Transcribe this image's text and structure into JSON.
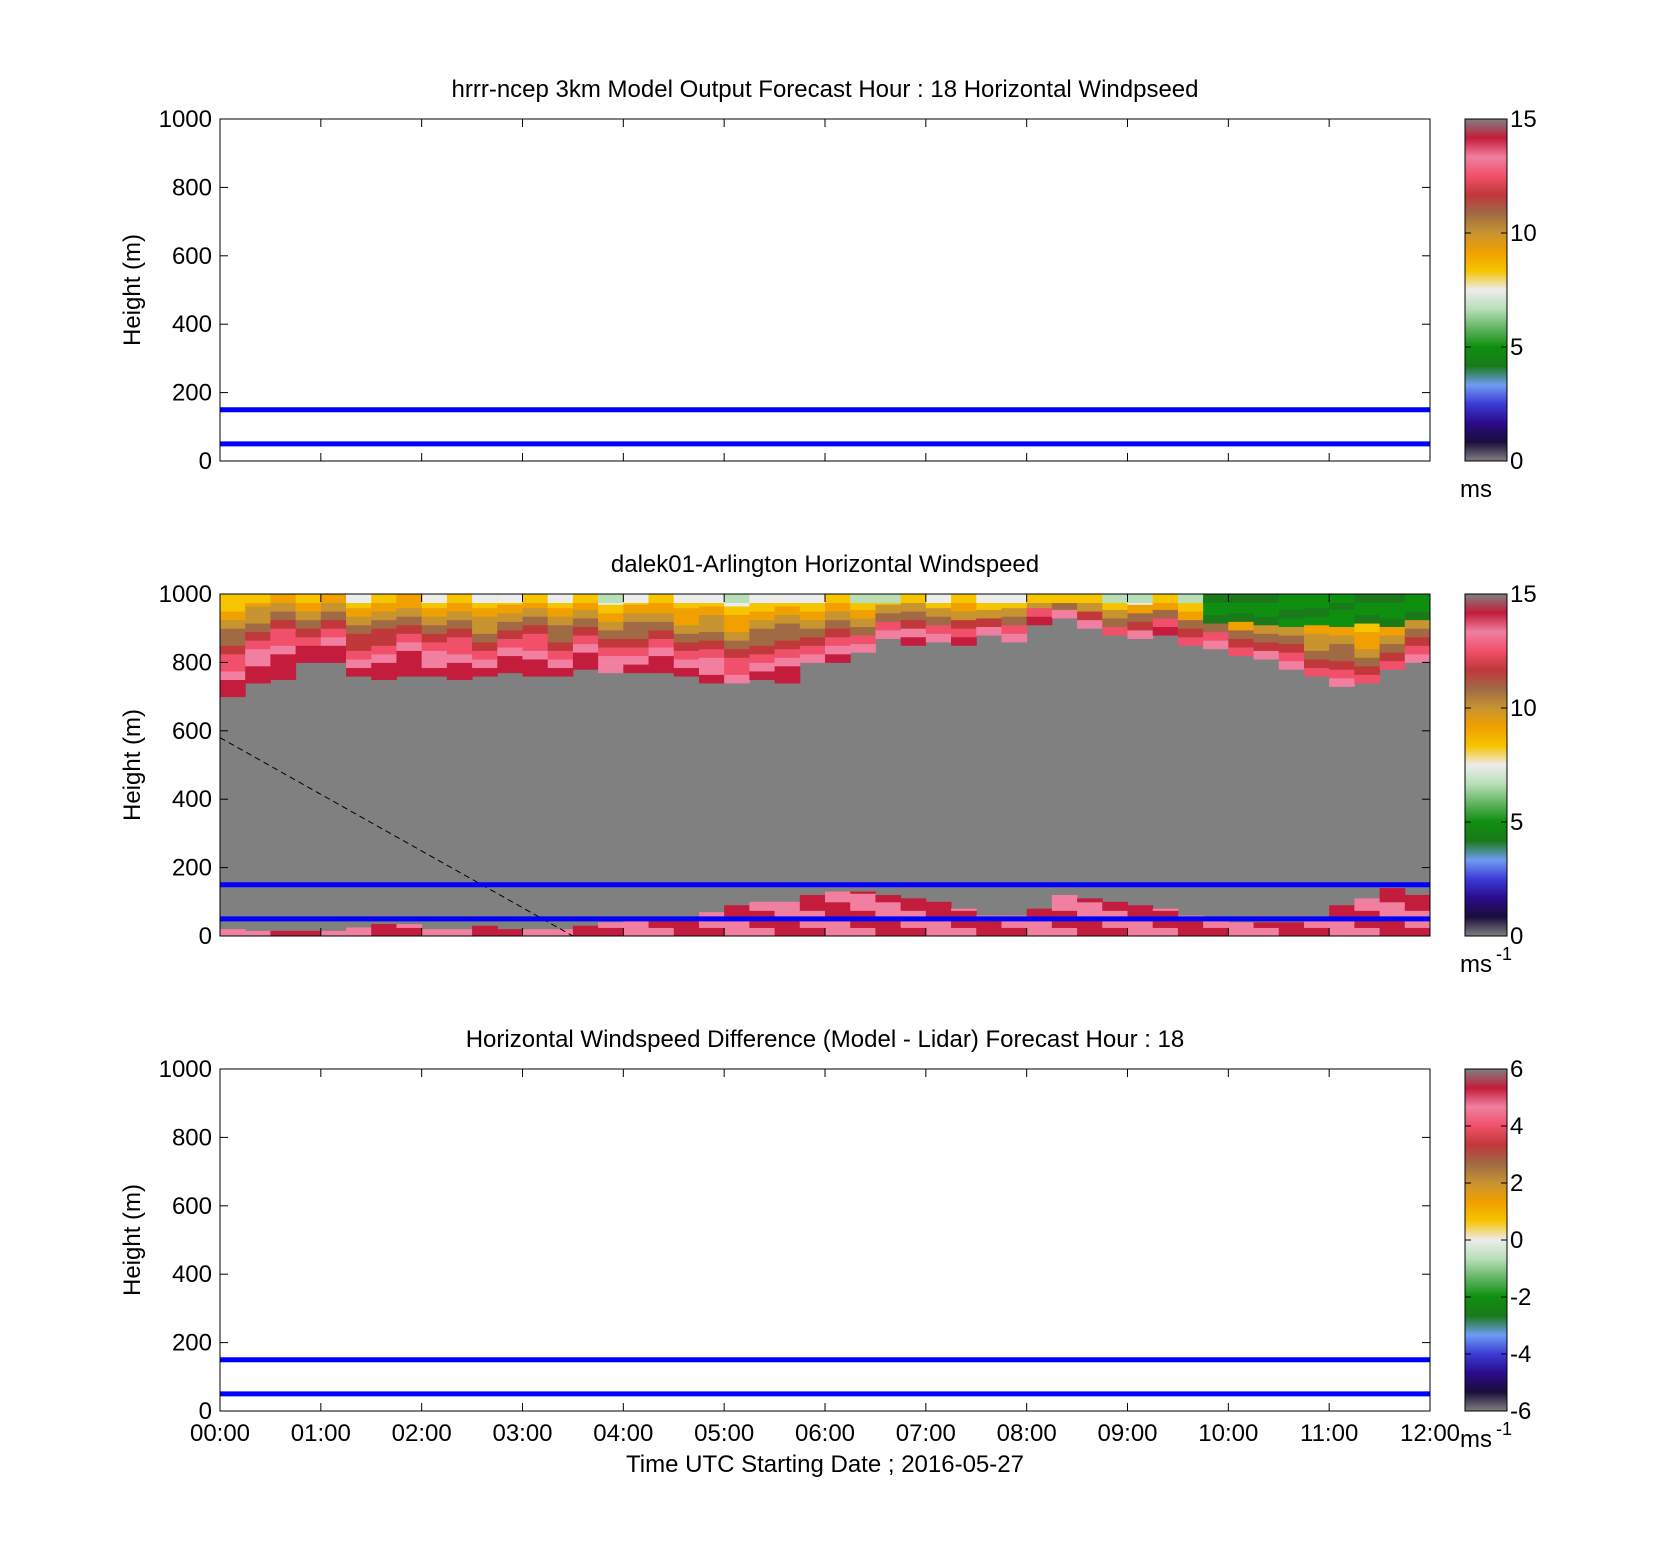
{
  "figure": {
    "xlabel": "Time UTC  Starting Date ; 2016-05-27",
    "x_ticks": [
      "00:00",
      "01:00",
      "02:00",
      "03:00",
      "04:00",
      "05:00",
      "06:00",
      "07:00",
      "08:00",
      "09:00",
      "10:00",
      "11:00",
      "12:00"
    ]
  },
  "chart_data": [
    {
      "type": "heatmap",
      "title": "hrrr-ncep 3km Model Output   Forecast Hour : 18 Horizontal Windpseed",
      "ylabel": "Height (m)",
      "xlim": [
        "00:00",
        "12:00"
      ],
      "ylim": [
        0,
        1000
      ],
      "y_ticks": [
        "0",
        "200",
        "400",
        "600",
        "800",
        "1000"
      ],
      "reference_lines_m": [
        50,
        150
      ],
      "colorbar": {
        "range": [
          0,
          15
        ],
        "ticks": [
          "0",
          "5",
          "10",
          "15"
        ],
        "unit": "ms",
        "unit_sup": ""
      },
      "field": "empty"
    },
    {
      "type": "heatmap",
      "title": "dalek01-Arlington  Horizontal Windspeed",
      "ylabel": "Height (m)",
      "xlim": [
        "00:00",
        "12:00"
      ],
      "ylim": [
        0,
        1000
      ],
      "y_ticks": [
        "0",
        "200",
        "400",
        "600",
        "800",
        "1000"
      ],
      "reference_lines_m": [
        50,
        150
      ],
      "colorbar": {
        "range": [
          0,
          15
        ],
        "ticks": [
          "0",
          "5",
          "10",
          "15"
        ],
        "unit": "ms",
        "unit_sup": "-1"
      },
      "time_steps_hours": 0.25,
      "lower_data_edge_m": [
        700,
        740,
        750,
        800,
        800,
        760,
        750,
        760,
        760,
        750,
        760,
        770,
        760,
        760,
        780,
        770,
        770,
        770,
        760,
        740,
        740,
        750,
        740,
        800,
        800,
        830,
        870,
        850,
        860,
        850,
        880,
        860,
        910,
        930,
        900,
        880,
        870,
        880,
        850,
        840,
        820,
        810,
        780,
        760,
        730,
        740,
        780,
        800
      ],
      "lowest_layer_top_m": [
        20,
        15,
        15,
        15,
        15,
        25,
        35,
        35,
        20,
        20,
        30,
        20,
        20,
        20,
        30,
        40,
        50,
        50,
        55,
        70,
        90,
        100,
        100,
        120,
        130,
        130,
        120,
        110,
        100,
        80,
        60,
        60,
        80,
        120,
        110,
        100,
        90,
        80,
        60,
        50,
        40,
        40,
        40,
        50,
        90,
        110,
        140,
        120
      ],
      "fill_gray": "#808080"
    },
    {
      "type": "heatmap",
      "title": "Horizontal Windspeed Difference (Model - Lidar) Forecast Hour : 18",
      "ylabel": "Height (m)",
      "xlim": [
        "00:00",
        "12:00"
      ],
      "ylim": [
        0,
        1000
      ],
      "y_ticks": [
        "0",
        "200",
        "400",
        "600",
        "800",
        "1000"
      ],
      "reference_lines_m": [
        50,
        150
      ],
      "colorbar": {
        "range": [
          -6,
          6
        ],
        "ticks": [
          "-6",
          "-4",
          "-2",
          "0",
          "2",
          "4",
          "6"
        ],
        "unit": "ms",
        "unit_sup": "-1"
      },
      "field": "empty"
    }
  ],
  "colormap": [
    "#808080",
    "#1a0e3a",
    "#2b0b8a",
    "#3b3bd6",
    "#6f9cf2",
    "#1a7a1a",
    "#0f8f0f",
    "#63b463",
    "#b8dfb8",
    "#ececec",
    "#f7c400",
    "#f0a000",
    "#c89430",
    "#a06a45",
    "#c0383a",
    "#f0506a",
    "#f07fa0",
    "#c41c3c",
    "#808080"
  ],
  "reference_line_color": "#0000ff"
}
